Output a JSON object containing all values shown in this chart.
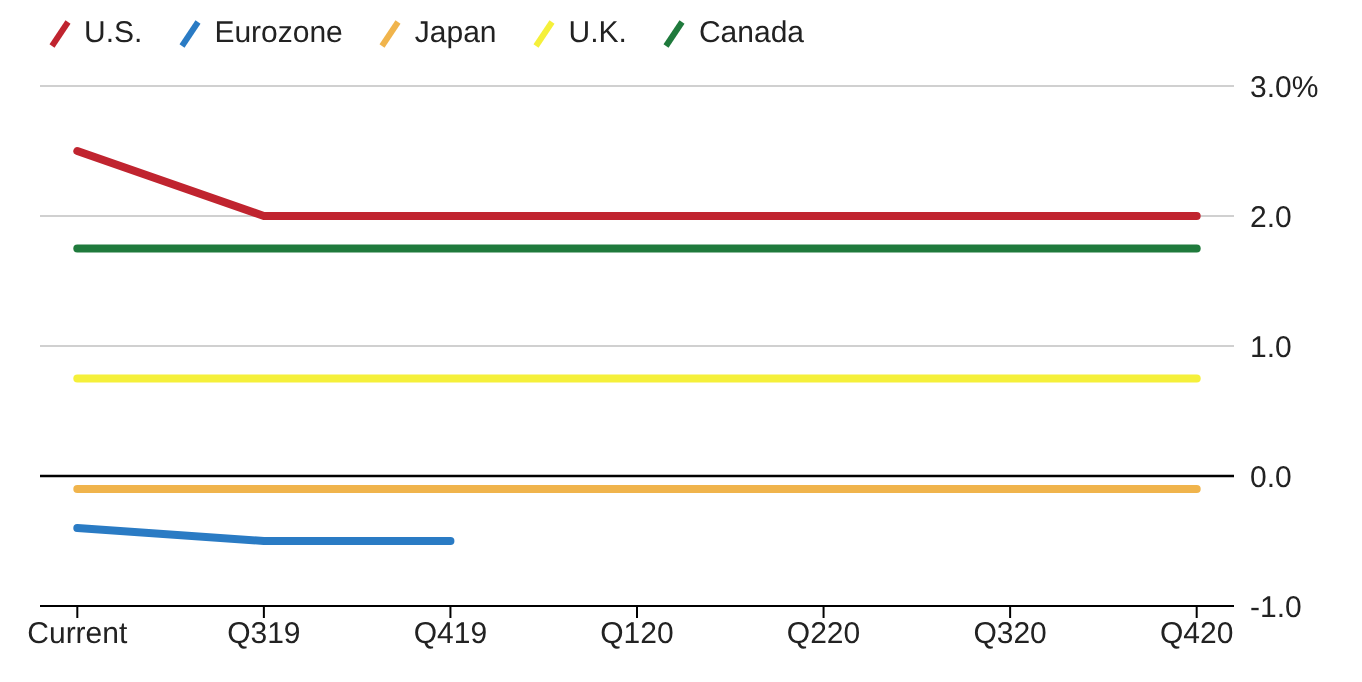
{
  "chart_data": {
    "type": "line",
    "categories": [
      "Current",
      "Q319",
      "Q419",
      "Q120",
      "Q220",
      "Q320",
      "Q420"
    ],
    "series": [
      {
        "name": "U.S.",
        "color": "#c0242f",
        "values": [
          2.5,
          2.0,
          2.0,
          2.0,
          2.0,
          2.0,
          2.0
        ]
      },
      {
        "name": "Eurozone",
        "color": "#2a7bc4",
        "values": [
          -0.4,
          -0.5,
          -0.5,
          null,
          null,
          null,
          null
        ]
      },
      {
        "name": "Japan",
        "color": "#f0b44c",
        "values": [
          -0.1,
          -0.1,
          -0.1,
          -0.1,
          -0.1,
          -0.1,
          -0.1
        ]
      },
      {
        "name": "U.K.",
        "color": "#f5f03a",
        "values": [
          0.75,
          0.75,
          0.75,
          0.75,
          0.75,
          0.75,
          0.75
        ]
      },
      {
        "name": "Canada",
        "color": "#1f7a3c",
        "values": [
          1.75,
          1.75,
          1.75,
          1.75,
          1.75,
          1.75,
          1.75
        ]
      }
    ],
    "ylim": [
      -1,
      3
    ],
    "yticks": [
      {
        "value": -1,
        "label": "-1.0"
      },
      {
        "value": 0,
        "label": "0.0"
      },
      {
        "value": 1,
        "label": "1.0"
      },
      {
        "value": 2,
        "label": "2.0"
      },
      {
        "value": 3,
        "label": "3.0%"
      }
    ],
    "ref_lines": [
      {
        "axis": "y",
        "value": 0,
        "color": "#000000"
      }
    ],
    "grid": "y",
    "legend": "top left",
    "marker": "none",
    "line_style": "solid"
  }
}
